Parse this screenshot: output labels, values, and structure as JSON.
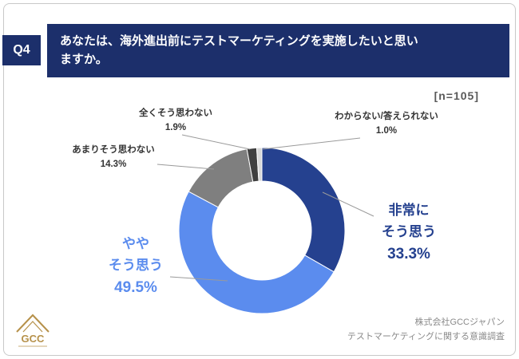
{
  "header": {
    "q_label": "Q4",
    "title_line1": "あなたは、海外進出前にテストマーケティングを実施したいと思い",
    "title_line2": "ますか。"
  },
  "sample_size": "[n=105]",
  "chart_data": {
    "type": "pie",
    "donut": true,
    "title": "あなたは、海外進出前にテストマーケティングを実施したいと思いますか。",
    "units": "%",
    "sample_size": 105,
    "start_angle_deg": 0,
    "direction": "clockwise",
    "legend": "none (direct labels with leader lines)",
    "segments": [
      {
        "key": "hijou",
        "label": "非常にそう思う",
        "value": 33.3,
        "color": "#25418f"
      },
      {
        "key": "yaya",
        "label": "ややそう思う",
        "value": 49.5,
        "color": "#5b8cee"
      },
      {
        "key": "amari",
        "label": "あまりそう思わない",
        "value": 14.3,
        "color": "#7f7f7f"
      },
      {
        "key": "zenku",
        "label": "全くそう思わない",
        "value": 1.9,
        "color": "#3f3f3f"
      },
      {
        "key": "wakaranai",
        "label": "わからない/答えられない",
        "value": 1.0,
        "color": "#d8d8d8"
      }
    ]
  },
  "labels": {
    "hijou": {
      "line1": "非常に",
      "line2": "そう思う",
      "pct": "33.3%"
    },
    "yaya": {
      "line1": "やや",
      "line2": "そう思う",
      "pct": "49.5%"
    },
    "amari": {
      "name": "あまりそう思わない",
      "pct": "14.3%"
    },
    "zenku": {
      "name": "全くそう思わない",
      "pct": "1.9%"
    },
    "wakaranai": {
      "name": "わからない/答えられない",
      "pct": "1.0%"
    }
  },
  "footer": {
    "company": "株式会社GCCジャパン",
    "survey": "テストマーケティングに関する意識調査",
    "logo_text": "GCC"
  },
  "colors": {
    "banner_navy": "#1c2f6b",
    "accent_navy": "#25418f",
    "accent_blue": "#5b8cee",
    "gold": "#b6914a"
  }
}
